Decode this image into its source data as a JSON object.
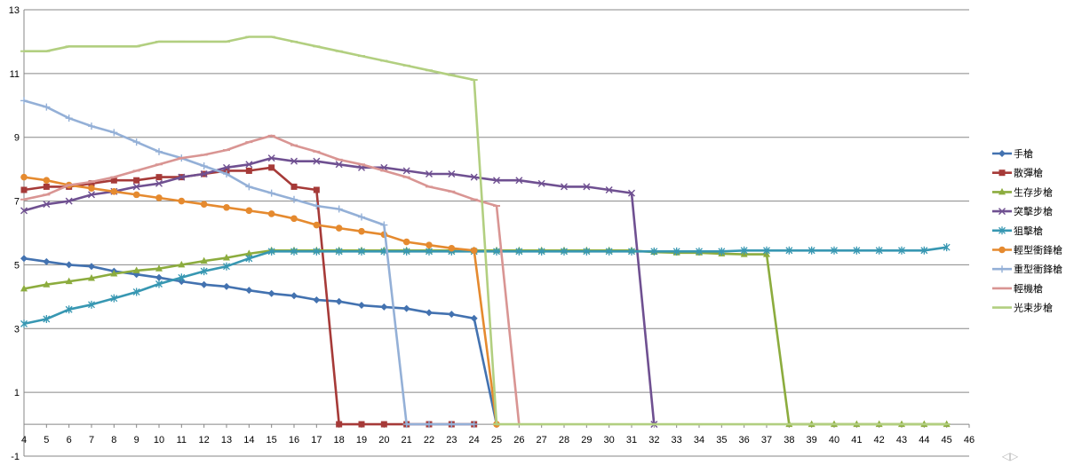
{
  "chart_data": {
    "type": "line",
    "title": "",
    "xlabel": "",
    "ylabel": "",
    "xlim": [
      4,
      46
    ],
    "ylim": [
      -1,
      13
    ],
    "x_ticks": [
      4,
      5,
      6,
      7,
      8,
      9,
      10,
      11,
      12,
      13,
      14,
      15,
      16,
      17,
      18,
      19,
      20,
      21,
      22,
      23,
      24,
      25,
      26,
      27,
      28,
      29,
      30,
      31,
      32,
      33,
      34,
      35,
      36,
      37,
      38,
      39,
      40,
      41,
      42,
      43,
      44,
      45,
      46
    ],
    "y_ticks": [
      -1,
      1,
      3,
      5,
      7,
      9,
      11,
      13
    ],
    "grid": "horizontal",
    "legend_position": "right",
    "series": [
      {
        "name": "手槍",
        "color": "#4372b0",
        "marker": "diamond",
        "x": [
          4,
          5,
          6,
          7,
          8,
          9,
          10,
          11,
          12,
          13,
          14,
          15,
          16,
          17,
          18,
          19,
          20,
          21,
          22,
          23,
          24,
          25
        ],
        "y": [
          5.2,
          5.1,
          5.0,
          4.95,
          4.8,
          4.7,
          4.6,
          4.48,
          4.38,
          4.32,
          4.2,
          4.1,
          4.03,
          3.9,
          3.85,
          3.73,
          3.68,
          3.63,
          3.5,
          3.45,
          3.32,
          0
        ]
      },
      {
        "name": "散彈槍",
        "color": "#a63a38",
        "marker": "square",
        "x": [
          4,
          5,
          6,
          7,
          8,
          9,
          10,
          11,
          12,
          13,
          14,
          15,
          16,
          17,
          18,
          19,
          20,
          21,
          22,
          23,
          24
        ],
        "y": [
          7.35,
          7.45,
          7.45,
          7.55,
          7.65,
          7.65,
          7.75,
          7.75,
          7.85,
          7.95,
          7.95,
          8.05,
          7.45,
          7.35,
          0,
          0,
          0,
          0,
          0,
          0,
          0
        ]
      },
      {
        "name": "生存步槍",
        "color": "#8cac3e",
        "marker": "triangle",
        "x": [
          4,
          5,
          6,
          7,
          8,
          9,
          10,
          11,
          12,
          13,
          14,
          15,
          16,
          17,
          18,
          19,
          20,
          21,
          22,
          23,
          24,
          25,
          26,
          27,
          28,
          29,
          30,
          31,
          32,
          33,
          34,
          35,
          36,
          37,
          38,
          39,
          40,
          41,
          42,
          43,
          44,
          45
        ],
        "y": [
          4.25,
          4.38,
          4.48,
          4.58,
          4.72,
          4.82,
          4.88,
          5.0,
          5.12,
          5.22,
          5.35,
          5.45,
          5.45,
          5.45,
          5.45,
          5.45,
          5.45,
          5.45,
          5.45,
          5.45,
          5.45,
          5.45,
          5.45,
          5.45,
          5.45,
          5.45,
          5.45,
          5.45,
          5.4,
          5.38,
          5.38,
          5.35,
          5.33,
          5.33,
          0,
          0,
          0,
          0,
          0,
          0,
          0,
          0
        ]
      },
      {
        "name": "突擊步槍",
        "color": "#6f5091",
        "marker": "x",
        "x": [
          4,
          5,
          6,
          7,
          8,
          9,
          10,
          11,
          12,
          13,
          14,
          15,
          16,
          17,
          18,
          19,
          20,
          21,
          22,
          23,
          24,
          25,
          26,
          27,
          28,
          29,
          30,
          31,
          32
        ],
        "y": [
          6.7,
          6.9,
          7.0,
          7.2,
          7.3,
          7.45,
          7.55,
          7.75,
          7.85,
          8.05,
          8.15,
          8.35,
          8.25,
          8.25,
          8.15,
          8.05,
          8.05,
          7.95,
          7.85,
          7.85,
          7.75,
          7.65,
          7.65,
          7.55,
          7.45,
          7.45,
          7.35,
          7.25,
          0
        ]
      },
      {
        "name": "狙擊槍",
        "color": "#3797b2",
        "marker": "star",
        "x": [
          4,
          5,
          6,
          7,
          8,
          9,
          10,
          11,
          12,
          13,
          14,
          15,
          16,
          17,
          18,
          19,
          20,
          21,
          22,
          23,
          24,
          25,
          26,
          27,
          28,
          29,
          30,
          31,
          32,
          33,
          34,
          35,
          36,
          37,
          38,
          39,
          40,
          41,
          42,
          43,
          44,
          45
        ],
        "y": [
          3.15,
          3.3,
          3.6,
          3.75,
          3.95,
          4.15,
          4.4,
          4.6,
          4.8,
          4.95,
          5.2,
          5.42,
          5.42,
          5.42,
          5.42,
          5.42,
          5.42,
          5.42,
          5.42,
          5.42,
          5.42,
          5.42,
          5.42,
          5.42,
          5.42,
          5.42,
          5.42,
          5.42,
          5.42,
          5.42,
          5.42,
          5.42,
          5.45,
          5.45,
          5.45,
          5.45,
          5.45,
          5.45,
          5.45,
          5.45,
          5.45,
          5.55
        ]
      },
      {
        "name": "輕型衝鋒槍",
        "color": "#e58a2f",
        "marker": "circle",
        "x": [
          4,
          5,
          6,
          7,
          8,
          9,
          10,
          11,
          12,
          13,
          14,
          15,
          16,
          17,
          18,
          19,
          20,
          21,
          22,
          23,
          24,
          25
        ],
        "y": [
          7.75,
          7.65,
          7.5,
          7.4,
          7.3,
          7.2,
          7.1,
          7.0,
          6.9,
          6.8,
          6.7,
          6.6,
          6.45,
          6.25,
          6.15,
          6.05,
          5.95,
          5.72,
          5.62,
          5.52,
          5.45,
          0
        ]
      },
      {
        "name": "重型衝鋒槍",
        "color": "#94b0d7",
        "marker": "plus",
        "x": [
          4,
          5,
          6,
          7,
          8,
          9,
          10,
          11,
          12,
          13,
          14,
          15,
          16,
          17,
          18,
          19,
          20,
          21,
          22,
          23,
          24
        ],
        "y": [
          10.15,
          9.95,
          9.6,
          9.35,
          9.15,
          8.85,
          8.55,
          8.35,
          8.1,
          7.85,
          7.45,
          7.25,
          7.05,
          6.85,
          6.75,
          6.5,
          6.25,
          0,
          0,
          0,
          0
        ]
      },
      {
        "name": "輕機槍",
        "color": "#d99593",
        "marker": "dash",
        "x": [
          4,
          5,
          6,
          7,
          8,
          9,
          10,
          11,
          12,
          13,
          14,
          15,
          16,
          17,
          18,
          19,
          20,
          21,
          22,
          23,
          24,
          25,
          26
        ],
        "y": [
          7.05,
          7.2,
          7.5,
          7.6,
          7.75,
          7.95,
          8.15,
          8.35,
          8.45,
          8.6,
          8.85,
          9.05,
          8.75,
          8.55,
          8.3,
          8.15,
          7.95,
          7.75,
          7.45,
          7.3,
          7.05,
          6.85,
          0
        ]
      },
      {
        "name": "光束步槍",
        "color": "#b2cf80",
        "marker": "dash",
        "x": [
          4,
          5,
          6,
          7,
          8,
          9,
          10,
          11,
          12,
          13,
          14,
          15,
          16,
          17,
          18,
          19,
          20,
          21,
          22,
          23,
          24,
          25,
          26,
          27,
          28,
          29,
          30,
          31,
          32,
          33,
          34,
          35,
          36,
          37,
          38,
          39,
          40,
          41,
          42,
          43,
          44,
          45
        ],
        "y": [
          11.7,
          11.7,
          11.85,
          11.85,
          11.85,
          11.85,
          12.0,
          12.0,
          12.0,
          12.0,
          12.15,
          12.15,
          12.0,
          11.85,
          11.7,
          11.55,
          11.4,
          11.25,
          11.1,
          10.95,
          10.8,
          0,
          0,
          0,
          0,
          0,
          0,
          0,
          0,
          0,
          0,
          0,
          0,
          0,
          0,
          0,
          0,
          0,
          0,
          0,
          0,
          0
        ]
      }
    ]
  }
}
